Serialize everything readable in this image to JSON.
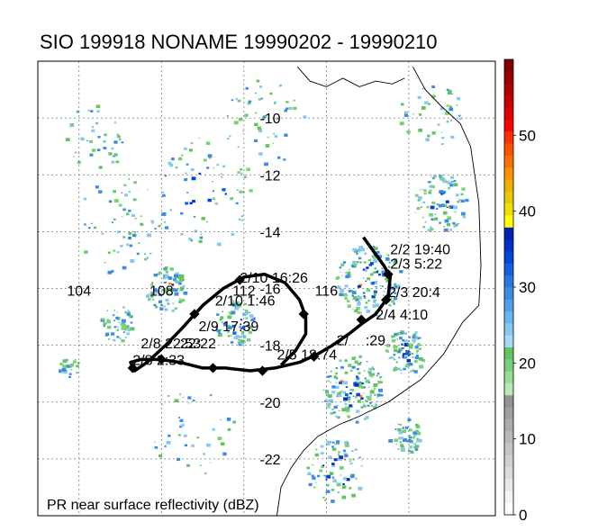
{
  "title": "SIO 199918 NONAME 19990202 - 19990210",
  "footer_label": "PR near surface reflectivity (dBZ)",
  "lat_labels": [
    {
      "lat": -10,
      "text": "-10"
    },
    {
      "lat": -12,
      "text": "-12"
    },
    {
      "lat": -14,
      "text": "-14"
    },
    {
      "lat": -16,
      "text": "-16"
    },
    {
      "lat": -18,
      "text": "-18"
    },
    {
      "lat": -20,
      "text": "-20"
    },
    {
      "lat": -22,
      "text": "-22"
    }
  ],
  "lon_labels": [
    {
      "lon": 104,
      "text": "104"
    },
    {
      "lon": 108,
      "text": "108"
    },
    {
      "lon": 112,
      "text": "112"
    },
    {
      "lon": 116,
      "text": "116"
    }
  ],
  "colorbar": {
    "min": 0,
    "max": 60,
    "ticks": [
      {
        "value": 0,
        "text": "0"
      },
      {
        "value": 10,
        "text": "10"
      },
      {
        "value": 20,
        "text": "20"
      },
      {
        "value": 30,
        "text": "30"
      },
      {
        "value": 40,
        "text": "40"
      },
      {
        "value": 50,
        "text": "50"
      }
    ],
    "colors": [
      "#ffffff",
      "#f4f4f4",
      "#e8e8e8",
      "#dcdcdc",
      "#d0d0d0",
      "#c4c4c4",
      "#b8b8b8",
      "#acacac",
      "#a0a0a0",
      "#949494",
      "#b8e8b8",
      "#98dc98",
      "#78d078",
      "#60c460",
      "#a8d8f8",
      "#88c8f0",
      "#6cb4ec",
      "#50a0e8",
      "#3c8ce4",
      "#2878e0",
      "#1460e0",
      "#0044d8",
      "#0030c8",
      "#0020b0",
      "#ffff00",
      "#f0e000",
      "#e8c800",
      "#f0b000",
      "#ff9000",
      "#ff7000",
      "#ff5000",
      "#ff3000",
      "#ff0000",
      "#e00000",
      "#c80000",
      "#b00000",
      "#980000",
      "#800000"
    ]
  },
  "track_labels": [
    {
      "text": "2/2 19:40",
      "lon": 119.1,
      "lat": -14.8
    },
    {
      "text": "2/3 5:22",
      "lon": 119.1,
      "lat": -15.3
    },
    {
      "text": "2/10 16:26",
      "lon": 111.8,
      "lat": -15.8
    },
    {
      "text": "2/3 20:4",
      "lon": 119.0,
      "lat": -16.3
    },
    {
      "text": "2/10 1:46",
      "lon": 110.6,
      "lat": -16.6
    },
    {
      "text": "2/4 4:10",
      "lon": 118.4,
      "lat": -17.1
    },
    {
      "text": "2/9 17:39",
      "lon": 109.8,
      "lat": -17.5
    },
    {
      "text": "2/",
      "lon": 116.5,
      "lat": -18.0
    },
    {
      "text": ":29",
      "lon": 117.9,
      "lat": -18.0
    },
    {
      "text": "2/8 22:53",
      "lon": 107.0,
      "lat": -18.1
    },
    {
      "text": "22:22",
      "lon": 108.9,
      "lat": -18.1
    },
    {
      "text": "2/5 18:74",
      "lon": 113.6,
      "lat": -18.5
    },
    {
      "text": "2/8 2:33",
      "lon": 106.6,
      "lat": -18.7
    }
  ],
  "track_points": [
    {
      "lon": 117.8,
      "lat": -14.2
    },
    {
      "lon": 118.8,
      "lat": -15.2
    },
    {
      "lon": 119.1,
      "lat": -15.6
    },
    {
      "lon": 119.0,
      "lat": -16.3
    },
    {
      "lon": 118.4,
      "lat": -16.9
    },
    {
      "lon": 117.8,
      "lat": -17.2
    },
    {
      "lon": 117.1,
      "lat": -17.6
    },
    {
      "lon": 116.3,
      "lat": -18.0
    },
    {
      "lon": 115.6,
      "lat": -18.3
    },
    {
      "lon": 114.7,
      "lat": -18.6
    },
    {
      "lon": 113.5,
      "lat": -18.8
    },
    {
      "lon": 112.3,
      "lat": -18.9
    },
    {
      "lon": 111.1,
      "lat": -18.8
    },
    {
      "lon": 110.0,
      "lat": -18.8
    },
    {
      "lon": 108.9,
      "lat": -18.6
    },
    {
      "lon": 107.9,
      "lat": -18.5
    },
    {
      "lon": 107.0,
      "lat": -18.5
    },
    {
      "lon": 106.5,
      "lat": -18.6
    },
    {
      "lon": 106.7,
      "lat": -18.9
    },
    {
      "lon": 107.3,
      "lat": -18.6
    },
    {
      "lon": 108.2,
      "lat": -18.0
    },
    {
      "lon": 109.0,
      "lat": -17.4
    },
    {
      "lon": 110.0,
      "lat": -16.6
    },
    {
      "lon": 111.0,
      "lat": -16.0
    },
    {
      "lon": 112.0,
      "lat": -15.6
    },
    {
      "lon": 113.0,
      "lat": -15.5
    },
    {
      "lon": 114.0,
      "lat": -15.8
    },
    {
      "lon": 114.7,
      "lat": -16.4
    },
    {
      "lon": 115.0,
      "lat": -17.0
    },
    {
      "lon": 115.0,
      "lat": -17.6
    },
    {
      "lon": 114.5,
      "lat": -18.2
    },
    {
      "lon": 113.8,
      "lat": -18.7
    }
  ],
  "track_markers": [
    {
      "lon": 119.0,
      "lat": -15.5
    },
    {
      "lon": 118.9,
      "lat": -16.4
    },
    {
      "lon": 117.7,
      "lat": -17.1
    },
    {
      "lon": 115.4,
      "lat": -18.4
    },
    {
      "lon": 112.9,
      "lat": -18.9
    },
    {
      "lon": 110.5,
      "lat": -18.8
    },
    {
      "lon": 108.0,
      "lat": -18.5
    },
    {
      "lon": 106.6,
      "lat": -18.8
    },
    {
      "lon": 109.6,
      "lat": -16.9
    },
    {
      "lon": 111.8,
      "lat": -15.7
    },
    {
      "lon": 114.9,
      "lat": -16.9
    }
  ],
  "coastline": [
    {
      "lon": 120.2,
      "lat": -8.2
    },
    {
      "lon": 120.8,
      "lat": -9.0
    },
    {
      "lon": 121.6,
      "lat": -9.6
    },
    {
      "lon": 122.5,
      "lat": -10.2
    },
    {
      "lon": 123.0,
      "lat": -11.0
    },
    {
      "lon": 123.4,
      "lat": -13.0
    },
    {
      "lon": 123.5,
      "lat": -15.2
    },
    {
      "lon": 123.4,
      "lat": -16.6
    },
    {
      "lon": 122.6,
      "lat": -17.2
    },
    {
      "lon": 121.7,
      "lat": -18.3
    },
    {
      "lon": 120.6,
      "lat": -19.2
    },
    {
      "lon": 119.0,
      "lat": -20.0
    },
    {
      "lon": 117.6,
      "lat": -20.5
    },
    {
      "lon": 116.6,
      "lat": -20.8
    },
    {
      "lon": 115.6,
      "lat": -21.2
    },
    {
      "lon": 114.9,
      "lat": -21.7
    },
    {
      "lon": 114.3,
      "lat": -22.3
    },
    {
      "lon": 113.8,
      "lat": -23.0
    },
    {
      "lon": 113.6,
      "lat": -24.0
    }
  ],
  "northern_coast": [
    {
      "lon": 114.6,
      "lat": -8.2
    },
    {
      "lon": 115.2,
      "lat": -8.7
    },
    {
      "lon": 116.0,
      "lat": -8.9
    },
    {
      "lon": 116.8,
      "lat": -8.6
    },
    {
      "lon": 117.6,
      "lat": -8.9
    },
    {
      "lon": 118.4,
      "lat": -8.7
    },
    {
      "lon": 119.2,
      "lat": -8.8
    },
    {
      "lon": 119.8,
      "lat": -8.6
    }
  ],
  "rain_clusters": [
    {
      "lon": 118.0,
      "lat": -15.7,
      "r": 1.6,
      "n": 160
    },
    {
      "lon": 117.2,
      "lat": -19.5,
      "r": 1.5,
      "n": 150
    },
    {
      "lon": 119.8,
      "lat": -18.2,
      "r": 1.0,
      "n": 90
    },
    {
      "lon": 108.2,
      "lat": -16.0,
      "r": 1.0,
      "n": 80
    },
    {
      "lon": 105.8,
      "lat": -17.2,
      "r": 0.8,
      "n": 50
    },
    {
      "lon": 111.5,
      "lat": -17.2,
      "r": 1.0,
      "n": 70
    },
    {
      "lon": 121.5,
      "lat": -13.0,
      "r": 1.3,
      "n": 90
    },
    {
      "lon": 116.4,
      "lat": -22.4,
      "r": 1.4,
      "n": 90
    },
    {
      "lon": 119.8,
      "lat": -21.2,
      "r": 0.8,
      "n": 50
    },
    {
      "lon": 103.5,
      "lat": -18.8,
      "r": 0.5,
      "n": 20
    },
    {
      "lon": 110.0,
      "lat": -12.6,
      "r": 2.4,
      "n": 70
    },
    {
      "lon": 106.0,
      "lat": -13.8,
      "r": 2.2,
      "n": 60
    },
    {
      "lon": 113.0,
      "lat": -10.2,
      "r": 2.0,
      "n": 50
    },
    {
      "lon": 104.8,
      "lat": -10.6,
      "r": 1.5,
      "n": 40
    },
    {
      "lon": 121.0,
      "lat": -9.8,
      "r": 1.5,
      "n": 40
    },
    {
      "lon": 109.5,
      "lat": -21.0,
      "r": 2.0,
      "n": 40
    }
  ]
}
